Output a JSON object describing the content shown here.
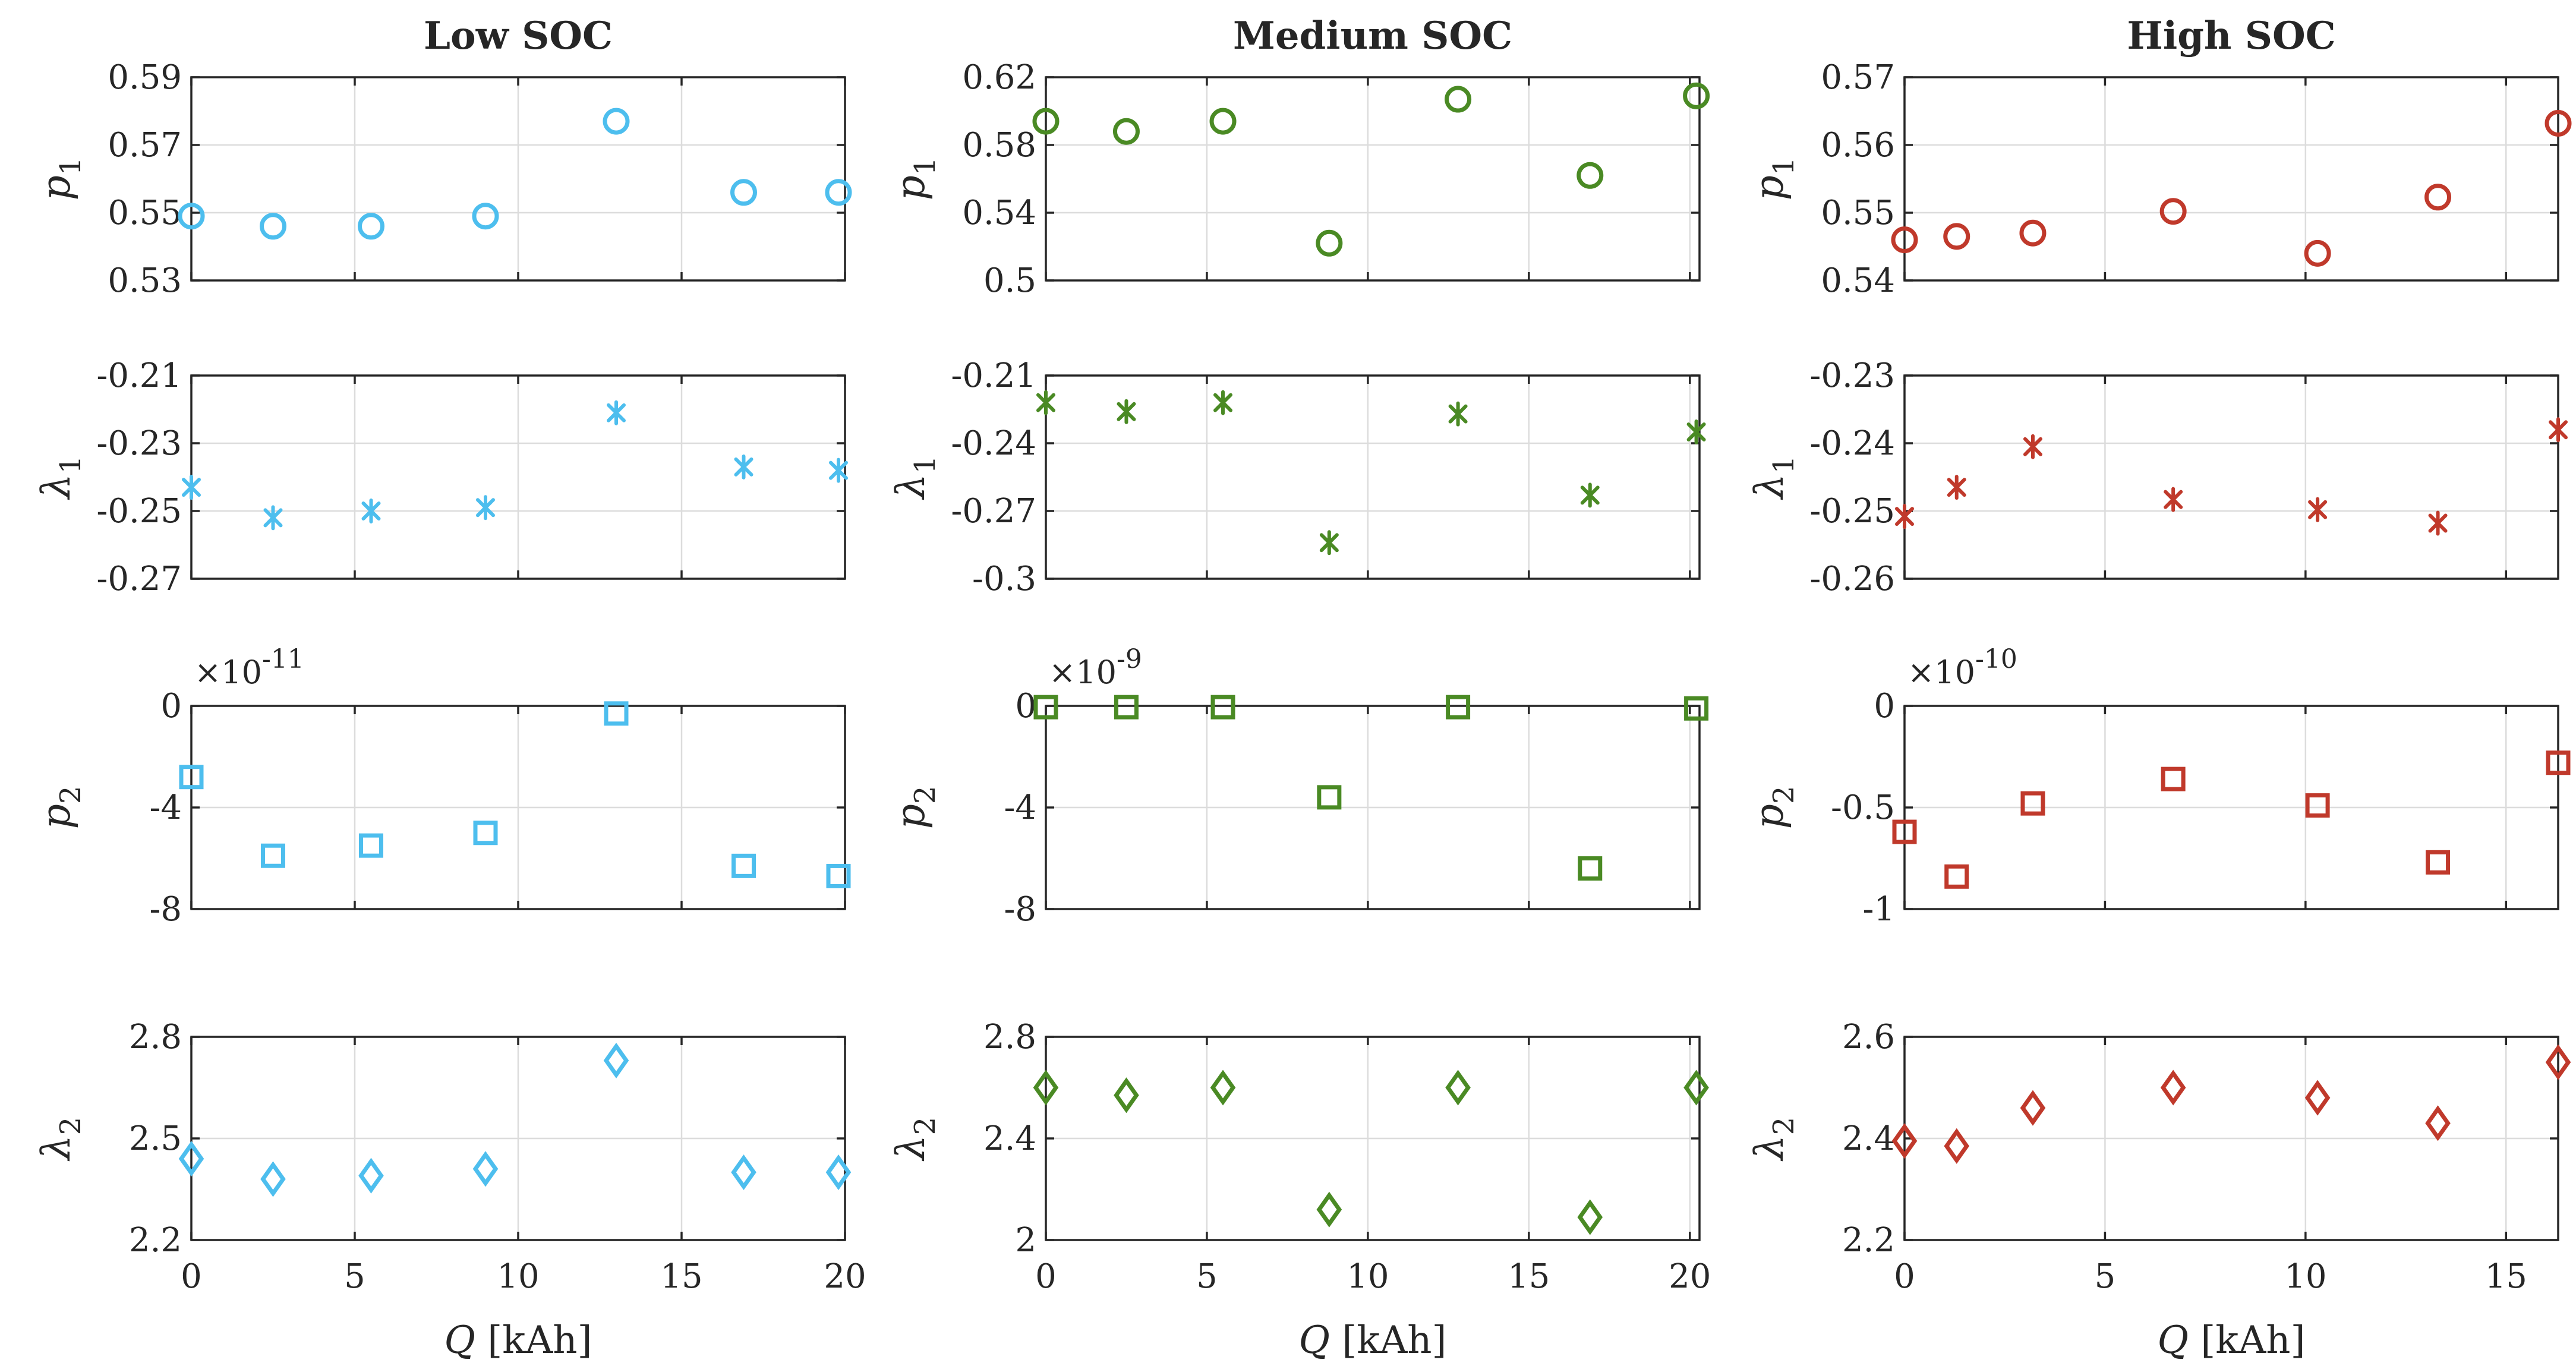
{
  "colors": {
    "low": "#4dbeee",
    "medium": "#4a8a24",
    "high": "#c0392b",
    "axis": "#262626",
    "grid": "#dcdcdc"
  },
  "chart_data": [
    {
      "type": "scatter",
      "column": "low",
      "row": "p1",
      "title": "Low SOC",
      "ylabel": "p",
      "ylabel_sub": "1",
      "marker": "circle",
      "x": [
        0,
        2.5,
        5.5,
        9,
        13,
        16.9,
        19.8
      ],
      "y": [
        0.549,
        0.546,
        0.546,
        0.549,
        0.577,
        0.556,
        0.556
      ],
      "xlim": [
        0,
        20
      ],
      "ylim": [
        0.53,
        0.59
      ],
      "yticks": [
        0.53,
        0.55,
        0.57,
        0.59
      ],
      "ytick_labels": [
        "0.53",
        "0.55",
        "0.57",
        "0.59"
      ],
      "xticks": [
        0,
        5,
        10,
        15,
        20
      ]
    },
    {
      "type": "scatter",
      "column": "low",
      "row": "l1",
      "ylabel": "λ",
      "ylabel_sub": "1",
      "marker": "asterisk",
      "x": [
        0,
        2.5,
        5.5,
        9,
        13,
        16.9,
        19.8
      ],
      "y": [
        -0.243,
        -0.252,
        -0.25,
        -0.249,
        -0.221,
        -0.237,
        -0.238
      ],
      "xlim": [
        0,
        20
      ],
      "ylim": [
        -0.27,
        -0.21
      ],
      "yticks": [
        -0.27,
        -0.25,
        -0.23,
        -0.21
      ],
      "ytick_labels": [
        "-0.27",
        "-0.25",
        "-0.23",
        "-0.21"
      ],
      "xticks": [
        0,
        5,
        10,
        15,
        20
      ]
    },
    {
      "type": "scatter",
      "column": "low",
      "row": "p2",
      "ylabel": "p",
      "ylabel_sub": "2",
      "marker": "square",
      "exponent_base": "×10",
      "exponent_power": "-11",
      "x": [
        0,
        2.5,
        5.5,
        9,
        13,
        16.9,
        19.8
      ],
      "y": [
        -2.8,
        -5.9,
        -5.5,
        -5.0,
        -0.3,
        -6.3,
        -6.7
      ],
      "xlim": [
        0,
        20
      ],
      "ylim": [
        -8,
        0
      ],
      "yticks": [
        -8,
        -4,
        0
      ],
      "ytick_labels": [
        "-8",
        "-4",
        "0"
      ],
      "xticks": [
        0,
        5,
        10,
        15,
        20
      ]
    },
    {
      "type": "scatter",
      "column": "low",
      "row": "l2",
      "ylabel": "λ",
      "ylabel_sub": "2",
      "marker": "diamond",
      "x": [
        0,
        2.5,
        5.5,
        9,
        13,
        16.9,
        19.8
      ],
      "y": [
        2.44,
        2.38,
        2.39,
        2.41,
        2.73,
        2.4,
        2.4
      ],
      "xlim": [
        0,
        20
      ],
      "ylim": [
        2.2,
        2.8
      ],
      "yticks": [
        2.2,
        2.5,
        2.8
      ],
      "ytick_labels": [
        "2.2",
        "2.5",
        "2.8"
      ],
      "xticks": [
        0,
        5,
        10,
        15,
        20
      ],
      "xtick_labels": [
        "0",
        "5",
        "10",
        "15",
        "20"
      ],
      "xlabel": "Q",
      "xlabel_unit": " [kAh]"
    },
    {
      "type": "scatter",
      "column": "medium",
      "row": "p1",
      "title": "Medium SOC",
      "ylabel": "p",
      "ylabel_sub": "1",
      "marker": "circle",
      "x": [
        0,
        2.5,
        5.5,
        8.8,
        12.8,
        16.9,
        20.2
      ],
      "y": [
        0.594,
        0.588,
        0.594,
        0.522,
        0.607,
        0.562,
        0.609
      ],
      "xlim": [
        0,
        20.3
      ],
      "ylim": [
        0.5,
        0.62
      ],
      "yticks": [
        0.5,
        0.54,
        0.58,
        0.62
      ],
      "ytick_labels": [
        "0.5",
        "0.54",
        "0.58",
        "0.62"
      ],
      "xticks": [
        0,
        5,
        10,
        15,
        20
      ]
    },
    {
      "type": "scatter",
      "column": "medium",
      "row": "l1",
      "ylabel": "λ",
      "ylabel_sub": "1",
      "marker": "asterisk",
      "x": [
        0,
        2.5,
        5.5,
        8.8,
        12.8,
        16.9,
        20.2
      ],
      "y": [
        -0.222,
        -0.226,
        -0.222,
        -0.284,
        -0.227,
        -0.263,
        -0.235
      ],
      "xlim": [
        0,
        20.3
      ],
      "ylim": [
        -0.3,
        -0.21
      ],
      "yticks": [
        -0.3,
        -0.27,
        -0.24,
        -0.21
      ],
      "ytick_labels": [
        "-0.3",
        "-0.27",
        "-0.24",
        "-0.21"
      ],
      "xticks": [
        0,
        5,
        10,
        15,
        20
      ]
    },
    {
      "type": "scatter",
      "column": "medium",
      "row": "p2",
      "ylabel": "p",
      "ylabel_sub": "2",
      "marker": "square",
      "exponent_base": "×10",
      "exponent_power": "-9",
      "x": [
        0,
        2.5,
        5.5,
        8.8,
        12.8,
        16.9,
        20.2
      ],
      "y": [
        -0.05,
        -0.05,
        -0.05,
        -3.6,
        -0.05,
        -6.4,
        -0.1
      ],
      "xlim": [
        0,
        20.3
      ],
      "ylim": [
        -8,
        0
      ],
      "yticks": [
        -8,
        -4,
        0
      ],
      "ytick_labels": [
        "-8",
        "-4",
        "0"
      ],
      "xticks": [
        0,
        5,
        10,
        15,
        20
      ]
    },
    {
      "type": "scatter",
      "column": "medium",
      "row": "l2",
      "ylabel": "λ",
      "ylabel_sub": "2",
      "marker": "diamond",
      "x": [
        0,
        2.5,
        5.5,
        8.8,
        12.8,
        16.9,
        20.2
      ],
      "y": [
        2.6,
        2.57,
        2.6,
        2.12,
        2.6,
        2.09,
        2.6
      ],
      "xlim": [
        0,
        20.3
      ],
      "ylim": [
        2.0,
        2.8
      ],
      "yticks": [
        2.0,
        2.4,
        2.8
      ],
      "ytick_labels": [
        "2",
        "2.4",
        "2.8"
      ],
      "xticks": [
        0,
        5,
        10,
        15,
        20
      ],
      "xtick_labels": [
        "0",
        "5",
        "10",
        "15",
        "20"
      ],
      "xlabel": "Q",
      "xlabel_unit": " [kAh]"
    },
    {
      "type": "scatter",
      "column": "high",
      "row": "p1",
      "title": "High SOC",
      "ylabel": "p",
      "ylabel_sub": "1",
      "marker": "circle",
      "x": [
        0,
        1.3,
        3.2,
        6.7,
        10.3,
        13.3,
        16.3
      ],
      "y": [
        0.546,
        0.5465,
        0.547,
        0.5502,
        0.544,
        0.5523,
        0.5632
      ],
      "xlim": [
        0,
        16.3
      ],
      "ylim": [
        0.54,
        0.57
      ],
      "yticks": [
        0.54,
        0.55,
        0.56,
        0.57
      ],
      "ytick_labels": [
        "0.54",
        "0.55",
        "0.56",
        "0.57"
      ],
      "xticks": [
        0,
        5,
        10,
        15
      ]
    },
    {
      "type": "scatter",
      "column": "high",
      "row": "l1",
      "ylabel": "λ",
      "ylabel_sub": "1",
      "marker": "asterisk",
      "x": [
        0,
        1.3,
        3.2,
        6.7,
        10.3,
        13.3,
        16.3
      ],
      "y": [
        -0.2508,
        -0.2465,
        -0.2405,
        -0.2483,
        -0.2498,
        -0.2518,
        -0.238
      ],
      "xlim": [
        0,
        16.3
      ],
      "ylim": [
        -0.26,
        -0.23
      ],
      "yticks": [
        -0.26,
        -0.25,
        -0.24,
        -0.23
      ],
      "ytick_labels": [
        "-0.26",
        "-0.25",
        "-0.24",
        "-0.23"
      ],
      "xticks": [
        0,
        5,
        10,
        15
      ]
    },
    {
      "type": "scatter",
      "column": "high",
      "row": "p2",
      "ylabel": "p",
      "ylabel_sub": "2",
      "marker": "square",
      "exponent_base": "×10",
      "exponent_power": "-10",
      "x": [
        0,
        1.3,
        3.2,
        6.7,
        10.3,
        13.3,
        16.3
      ],
      "y": [
        -0.62,
        -0.84,
        -0.48,
        -0.36,
        -0.49,
        -0.77,
        -0.28
      ],
      "xlim": [
        0,
        16.3
      ],
      "ylim": [
        -1.0,
        0
      ],
      "yticks": [
        -1.0,
        -0.5,
        0
      ],
      "ytick_labels": [
        "-1",
        "-0.5",
        "0"
      ],
      "xticks": [
        0,
        5,
        10,
        15
      ]
    },
    {
      "type": "scatter",
      "column": "high",
      "row": "l2",
      "ylabel": "λ",
      "ylabel_sub": "2",
      "marker": "diamond",
      "x": [
        0,
        1.3,
        3.2,
        6.7,
        10.3,
        13.3,
        16.3
      ],
      "y": [
        2.395,
        2.385,
        2.46,
        2.5,
        2.48,
        2.43,
        2.55
      ],
      "xlim": [
        0,
        16.3
      ],
      "ylim": [
        2.2,
        2.6
      ],
      "yticks": [
        2.2,
        2.4,
        2.6
      ],
      "ytick_labels": [
        "2.2",
        "2.4",
        "2.6"
      ],
      "xticks": [
        0,
        5,
        10,
        15
      ],
      "xtick_labels": [
        "0",
        "5",
        "10",
        "15"
      ],
      "xlabel": "Q",
      "xlabel_unit": " [kAh]"
    }
  ]
}
